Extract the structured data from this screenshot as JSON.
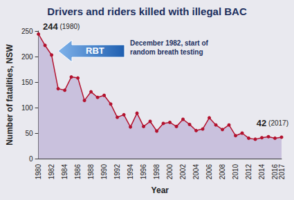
{
  "chart_data": {
    "type": "area",
    "title": "Drivers and riders killed with illegal BAC",
    "x_label": "Year",
    "y_label": "Number of fatalities, NSW",
    "categories": [
      "1980",
      null,
      "1982",
      null,
      "1984",
      null,
      "1986",
      null,
      "1988",
      null,
      "1990",
      null,
      "1992",
      null,
      "1994",
      null,
      "1996",
      null,
      "1998",
      null,
      "2000",
      null,
      "2002",
      null,
      "2004",
      null,
      "2006",
      null,
      "2008",
      null,
      "2010",
      null,
      "2012",
      null,
      "2014",
      null,
      "2016",
      "2017"
    ],
    "values": [
      244,
      222,
      203,
      137,
      134,
      160,
      158,
      114,
      131,
      120,
      124,
      107,
      81,
      86,
      62,
      89,
      63,
      73,
      54,
      69,
      71,
      63,
      77,
      67,
      55,
      58,
      80,
      66,
      57,
      66,
      45,
      50,
      40,
      38,
      41,
      43,
      40,
      42
    ],
    "color": "#b3122e",
    "marker": "circle",
    "ylim": [
      0,
      250
    ],
    "yticks": [
      0,
      50,
      100,
      150,
      200,
      250
    ],
    "grid": false,
    "annotations": [
      "244 (1980)",
      "42 (2017)",
      "RBT",
      "December 1982, start of\nrandom breath testing"
    ]
  }
}
